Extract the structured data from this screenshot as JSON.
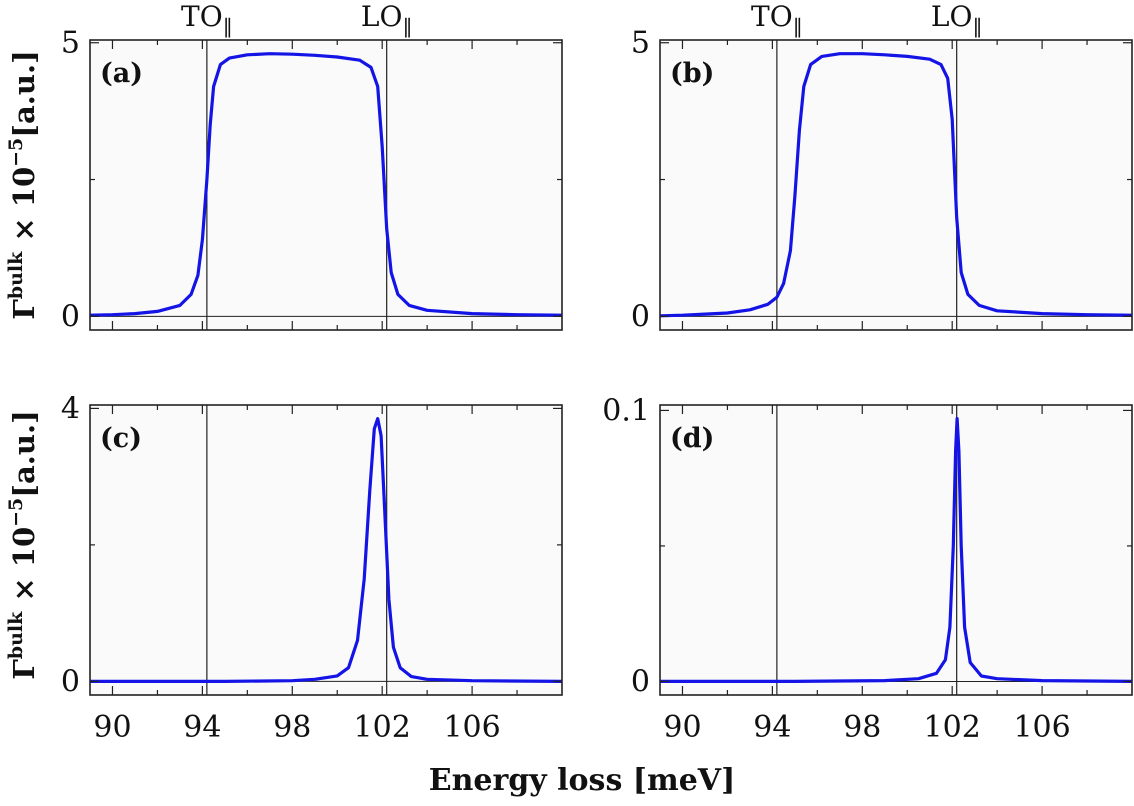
{
  "figure": {
    "xlabel": "Energy loss [meV]",
    "ylabel_parts": {
      "base": "Γ",
      "sup1": "bulk",
      "mid": " × 10",
      "sup2": "−5",
      "unit": "[a.u.]"
    },
    "top_labels": [
      "TO",
      "LO"
    ],
    "top_label_subscript": "‖",
    "x_ticks": [
      90,
      94,
      98,
      102,
      106
    ],
    "colors": {
      "curve": "#1414e6",
      "plot_bg": "#fafafa",
      "frame": "#222222",
      "ref_line": "#222222"
    }
  },
  "chart_data": [
    {
      "type": "line",
      "panel_label": "(a)",
      "xlim": [
        89,
        110
      ],
      "ylim": [
        -0.25,
        5.05
      ],
      "y_ticks": [
        0,
        5
      ],
      "y_minor_ticks": [
        2.5
      ],
      "vlines": [
        94.2,
        102.2
      ],
      "hline": 0,
      "series": [
        {
          "values": [
            [
              89,
              0.02
            ],
            [
              90,
              0.03
            ],
            [
              91,
              0.05
            ],
            [
              92,
              0.09
            ],
            [
              93,
              0.2
            ],
            [
              93.5,
              0.4
            ],
            [
              93.8,
              0.75
            ],
            [
              94.0,
              1.4
            ],
            [
              94.2,
              2.5
            ],
            [
              94.35,
              3.5
            ],
            [
              94.5,
              4.2
            ],
            [
              94.8,
              4.6
            ],
            [
              95.2,
              4.72
            ],
            [
              96,
              4.78
            ],
            [
              97,
              4.8
            ],
            [
              98,
              4.79
            ],
            [
              99,
              4.77
            ],
            [
              100,
              4.74
            ],
            [
              101,
              4.68
            ],
            [
              101.5,
              4.55
            ],
            [
              101.8,
              4.2
            ],
            [
              102.0,
              3.1
            ],
            [
              102.2,
              1.6
            ],
            [
              102.4,
              0.8
            ],
            [
              102.7,
              0.4
            ],
            [
              103.2,
              0.2
            ],
            [
              104,
              0.11
            ],
            [
              106,
              0.05
            ],
            [
              108,
              0.03
            ],
            [
              110,
              0.02
            ]
          ]
        }
      ]
    },
    {
      "type": "line",
      "panel_label": "(b)",
      "xlim": [
        89,
        110
      ],
      "ylim": [
        -0.25,
        5.05
      ],
      "y_ticks": [
        0,
        5
      ],
      "y_minor_ticks": [
        2.5
      ],
      "vlines": [
        94.2,
        102.2
      ],
      "hline": 0,
      "series": [
        {
          "values": [
            [
              89,
              0.01
            ],
            [
              90,
              0.02
            ],
            [
              91,
              0.04
            ],
            [
              92,
              0.06
            ],
            [
              93,
              0.12
            ],
            [
              93.8,
              0.22
            ],
            [
              94.2,
              0.35
            ],
            [
              94.5,
              0.6
            ],
            [
              94.8,
              1.2
            ],
            [
              95.0,
              2.2
            ],
            [
              95.2,
              3.4
            ],
            [
              95.4,
              4.2
            ],
            [
              95.7,
              4.6
            ],
            [
              96.2,
              4.75
            ],
            [
              97,
              4.8
            ],
            [
              98,
              4.8
            ],
            [
              99,
              4.78
            ],
            [
              100,
              4.75
            ],
            [
              101,
              4.7
            ],
            [
              101.5,
              4.6
            ],
            [
              101.8,
              4.35
            ],
            [
              102.0,
              3.6
            ],
            [
              102.2,
              1.8
            ],
            [
              102.4,
              0.8
            ],
            [
              102.7,
              0.4
            ],
            [
              103.2,
              0.2
            ],
            [
              104,
              0.1
            ],
            [
              106,
              0.05
            ],
            [
              108,
              0.03
            ],
            [
              110,
              0.02
            ]
          ]
        }
      ]
    },
    {
      "type": "line",
      "panel_label": "(c)",
      "xlim": [
        89,
        110
      ],
      "ylim": [
        -0.2,
        4.05
      ],
      "y_ticks": [
        0,
        4
      ],
      "y_minor_ticks": [
        2
      ],
      "vlines": [
        94.2,
        102.2
      ],
      "hline": 0,
      "series": [
        {
          "values": [
            [
              89,
              0
            ],
            [
              95,
              0
            ],
            [
              98,
              0.01
            ],
            [
              99,
              0.03
            ],
            [
              100,
              0.08
            ],
            [
              100.5,
              0.2
            ],
            [
              100.9,
              0.6
            ],
            [
              101.2,
              1.5
            ],
            [
              101.45,
              2.8
            ],
            [
              101.65,
              3.7
            ],
            [
              101.8,
              3.85
            ],
            [
              101.95,
              3.6
            ],
            [
              102.1,
              2.6
            ],
            [
              102.3,
              1.2
            ],
            [
              102.5,
              0.5
            ],
            [
              102.8,
              0.2
            ],
            [
              103.3,
              0.07
            ],
            [
              104,
              0.03
            ],
            [
              106,
              0.01
            ],
            [
              110,
              0
            ]
          ]
        }
      ]
    },
    {
      "type": "line",
      "panel_label": "(d)",
      "xlim": [
        89,
        110
      ],
      "ylim": [
        -0.005,
        0.102
      ],
      "y_ticks": [
        0,
        0.1
      ],
      "y_minor_ticks": [
        0.05
      ],
      "vlines": [
        94.2,
        102.2
      ],
      "hline": 0,
      "series": [
        {
          "values": [
            [
              89,
              0
            ],
            [
              95,
              0
            ],
            [
              99,
              0.0003
            ],
            [
              100.5,
              0.001
            ],
            [
              101.3,
              0.003
            ],
            [
              101.7,
              0.008
            ],
            [
              101.9,
              0.02
            ],
            [
              102.05,
              0.05
            ],
            [
              102.15,
              0.085
            ],
            [
              102.22,
              0.097
            ],
            [
              102.3,
              0.085
            ],
            [
              102.4,
              0.05
            ],
            [
              102.55,
              0.02
            ],
            [
              102.8,
              0.007
            ],
            [
              103.3,
              0.002
            ],
            [
              104,
              0.001
            ],
            [
              106,
              0.0003
            ],
            [
              110,
              0
            ]
          ]
        }
      ]
    }
  ]
}
